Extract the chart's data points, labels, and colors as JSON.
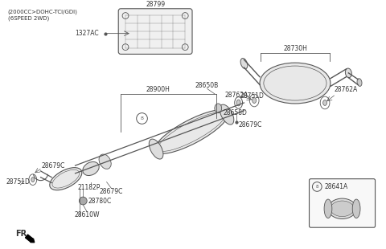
{
  "title_line1": "(2000CC>DOHC-TCI/GDI)",
  "title_line2": "(6SPEED 2WD)",
  "bg_color": "#ffffff",
  "lc": "#555555",
  "tc": "#333333",
  "shield_label": "28799",
  "shield_sub_label": "1327AC",
  "muffler_top_label": "28730H",
  "hanger_left_label": "28762A",
  "hanger_right_label": "28762A",
  "bracket_label": "28900H",
  "mid_label1": "28650B",
  "mid_label2": "28658D",
  "mid_label3": "28751D",
  "mid_label4": "28679C",
  "left_label1": "28679C",
  "left_label2": "28751D",
  "left_label3": "21182P",
  "left_label4": "28679C",
  "left_label5": "28780C",
  "left_label6": "28610W",
  "box_label": "28641A",
  "fr_label": "FR"
}
